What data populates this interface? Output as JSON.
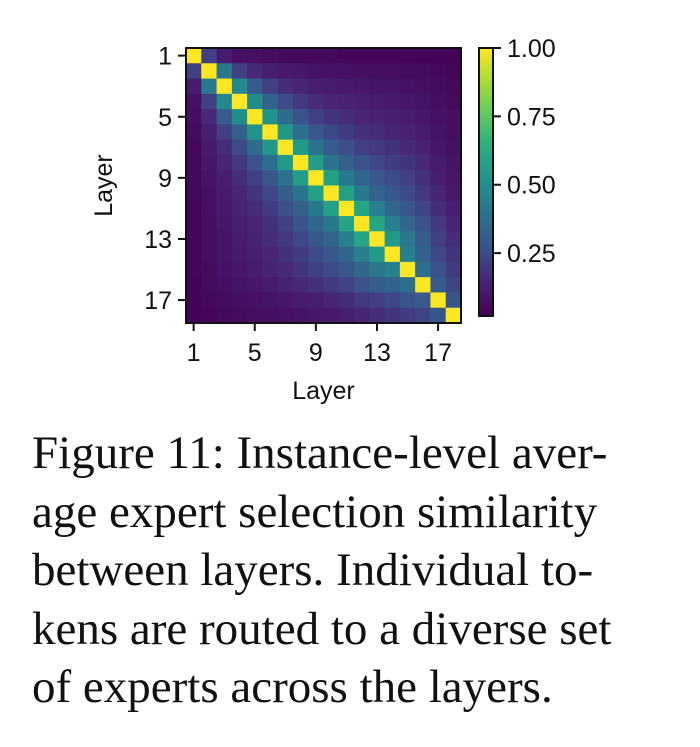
{
  "chart_data": {
    "type": "heatmap",
    "title": "",
    "xlabel": "Layer",
    "ylabel": "Layer",
    "x_ticks": [
      "1",
      "5",
      "9",
      "13",
      "17"
    ],
    "y_ticks": [
      "1",
      "5",
      "9",
      "13",
      "17"
    ],
    "colorbar_ticks": [
      "0.25",
      "0.50",
      "0.75",
      "1.00"
    ],
    "colorbar_range": [
      0.02,
      1.0
    ],
    "colormap": "viridis",
    "layers": [
      1,
      2,
      3,
      4,
      5,
      6,
      7,
      8,
      9,
      10,
      11,
      12,
      13,
      14,
      15,
      16,
      17,
      18
    ],
    "matrix": [
      [
        1.0,
        0.22,
        0.12,
        0.08,
        0.07,
        0.06,
        0.05,
        0.05,
        0.05,
        0.05,
        0.04,
        0.04,
        0.04,
        0.04,
        0.04,
        0.03,
        0.03,
        0.03
      ],
      [
        0.22,
        1.0,
        0.42,
        0.22,
        0.16,
        0.13,
        0.11,
        0.1,
        0.09,
        0.08,
        0.08,
        0.07,
        0.07,
        0.07,
        0.06,
        0.06,
        0.05,
        0.04
      ],
      [
        0.12,
        0.42,
        1.0,
        0.48,
        0.3,
        0.22,
        0.17,
        0.15,
        0.13,
        0.12,
        0.11,
        0.1,
        0.09,
        0.09,
        0.08,
        0.07,
        0.06,
        0.05
      ],
      [
        0.08,
        0.22,
        0.48,
        1.0,
        0.5,
        0.33,
        0.25,
        0.2,
        0.17,
        0.15,
        0.14,
        0.13,
        0.12,
        0.11,
        0.1,
        0.09,
        0.07,
        0.06
      ],
      [
        0.07,
        0.16,
        0.3,
        0.5,
        1.0,
        0.52,
        0.36,
        0.27,
        0.22,
        0.19,
        0.17,
        0.15,
        0.14,
        0.13,
        0.12,
        0.1,
        0.08,
        0.07
      ],
      [
        0.06,
        0.13,
        0.22,
        0.33,
        0.52,
        1.0,
        0.54,
        0.38,
        0.29,
        0.24,
        0.21,
        0.18,
        0.17,
        0.15,
        0.14,
        0.12,
        0.09,
        0.07
      ],
      [
        0.05,
        0.11,
        0.17,
        0.25,
        0.36,
        0.54,
        1.0,
        0.55,
        0.39,
        0.31,
        0.26,
        0.22,
        0.2,
        0.18,
        0.16,
        0.14,
        0.1,
        0.08
      ],
      [
        0.05,
        0.1,
        0.15,
        0.2,
        0.27,
        0.38,
        0.55,
        1.0,
        0.56,
        0.4,
        0.32,
        0.27,
        0.24,
        0.21,
        0.19,
        0.16,
        0.12,
        0.09
      ],
      [
        0.05,
        0.09,
        0.13,
        0.17,
        0.22,
        0.29,
        0.39,
        0.56,
        1.0,
        0.58,
        0.42,
        0.34,
        0.29,
        0.25,
        0.22,
        0.18,
        0.13,
        0.1
      ],
      [
        0.05,
        0.08,
        0.12,
        0.15,
        0.19,
        0.24,
        0.31,
        0.4,
        0.58,
        1.0,
        0.58,
        0.42,
        0.34,
        0.29,
        0.25,
        0.2,
        0.15,
        0.11
      ],
      [
        0.04,
        0.08,
        0.11,
        0.14,
        0.17,
        0.21,
        0.26,
        0.32,
        0.42,
        0.58,
        1.0,
        0.6,
        0.44,
        0.35,
        0.29,
        0.23,
        0.17,
        0.13
      ],
      [
        0.04,
        0.07,
        0.1,
        0.13,
        0.15,
        0.18,
        0.22,
        0.27,
        0.34,
        0.42,
        0.6,
        1.0,
        0.6,
        0.44,
        0.35,
        0.27,
        0.2,
        0.15
      ],
      [
        0.04,
        0.07,
        0.09,
        0.12,
        0.14,
        0.17,
        0.2,
        0.24,
        0.29,
        0.34,
        0.44,
        0.6,
        1.0,
        0.55,
        0.41,
        0.31,
        0.22,
        0.17
      ],
      [
        0.04,
        0.07,
        0.09,
        0.11,
        0.13,
        0.15,
        0.18,
        0.21,
        0.25,
        0.29,
        0.35,
        0.44,
        0.55,
        1.0,
        0.45,
        0.33,
        0.24,
        0.19
      ],
      [
        0.04,
        0.06,
        0.08,
        0.1,
        0.12,
        0.14,
        0.16,
        0.19,
        0.22,
        0.25,
        0.29,
        0.35,
        0.41,
        0.45,
        1.0,
        0.38,
        0.27,
        0.21
      ],
      [
        0.03,
        0.06,
        0.07,
        0.09,
        0.1,
        0.12,
        0.14,
        0.16,
        0.18,
        0.2,
        0.23,
        0.27,
        0.31,
        0.33,
        0.38,
        1.0,
        0.3,
        0.23
      ],
      [
        0.03,
        0.05,
        0.06,
        0.07,
        0.08,
        0.09,
        0.1,
        0.12,
        0.13,
        0.15,
        0.17,
        0.2,
        0.22,
        0.24,
        0.27,
        0.3,
        1.0,
        0.28
      ],
      [
        0.03,
        0.04,
        0.05,
        0.06,
        0.07,
        0.07,
        0.08,
        0.09,
        0.1,
        0.11,
        0.13,
        0.15,
        0.17,
        0.19,
        0.21,
        0.23,
        0.28,
        1.0
      ]
    ]
  },
  "caption": {
    "lines": "Figure 11: Instance-level aver-\nage expert selection similarity\nbetween layers. Individual to-\nkens are routed to a diverse set\nof experts across the layers."
  }
}
